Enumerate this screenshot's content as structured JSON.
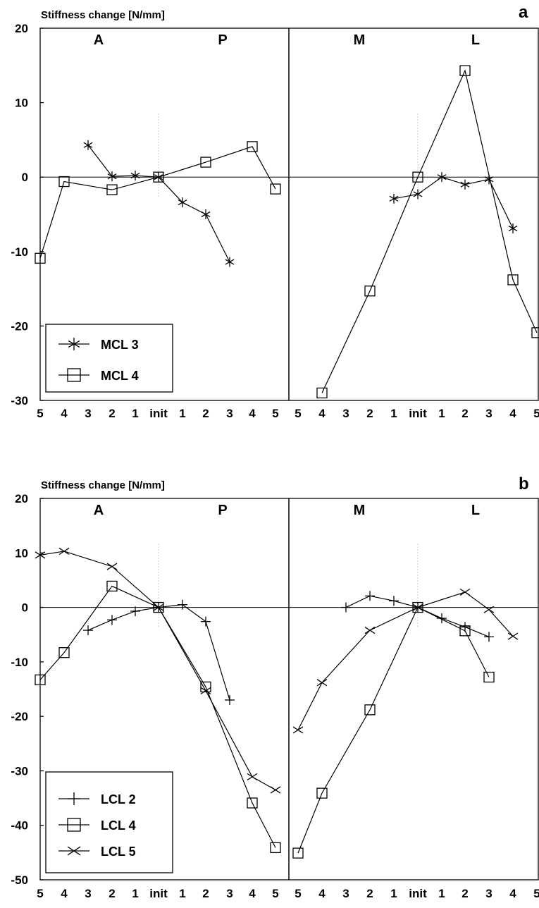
{
  "chart_data": [
    {
      "type": "line",
      "panel": "a",
      "ylabel": "Stiffness change [N/mm]",
      "ylim": [
        -30,
        20
      ],
      "yticks": [
        "20",
        "10",
        "0",
        "-10",
        "-20",
        "-30"
      ],
      "xtick_labels": [
        "5",
        "4",
        "3",
        "2",
        "1",
        "init",
        "1",
        "2",
        "3",
        "4",
        "5",
        "5",
        "4",
        "3",
        "2",
        "1",
        "init",
        "1",
        "2",
        "3",
        "4",
        "5"
      ],
      "regions": [
        "A",
        "P",
        "M",
        "L"
      ],
      "legend": [
        "MCL 3",
        "MCL 4"
      ],
      "series": [
        {
          "name": "MCL 3",
          "marker": "asterisk",
          "segments": [
            {
              "x": [
                2,
                3,
                4,
                5,
                6,
                7,
                8
              ],
              "y": [
                4.3,
                0.1,
                0.2,
                0,
                -3.4,
                -5,
                -11.4
              ]
            },
            {
              "x": [
                15,
                16,
                17,
                18,
                19,
                20
              ],
              "y": [
                -2.9,
                -2.3,
                0,
                -1,
                -0.3,
                -6.9
              ]
            }
          ]
        },
        {
          "name": "MCL 4",
          "marker": "square",
          "segments": [
            {
              "x": [
                0,
                1,
                3,
                5,
                7,
                9,
                10
              ],
              "y": [
                -10.9,
                -0.6,
                -1.7,
                0,
                2,
                4.1,
                -1.6
              ]
            },
            {
              "x": [
                12,
                14,
                16,
                18,
                20,
                21
              ],
              "y": [
                -29,
                -15.3,
                0,
                14.3,
                -13.8,
                -20.9
              ]
            }
          ]
        }
      ]
    },
    {
      "type": "line",
      "panel": "b",
      "ylabel": "Stiffness change [N/mm]",
      "ylim": [
        -50,
        20
      ],
      "yticks": [
        "20",
        "10",
        "0",
        "-10",
        "-20",
        "-30",
        "-40",
        "-50"
      ],
      "xtick_labels": [
        "5",
        "4",
        "3",
        "2",
        "1",
        "init",
        "1",
        "2",
        "3",
        "4",
        "5",
        "5",
        "4",
        "3",
        "2",
        "1",
        "init",
        "1",
        "2",
        "3",
        "4",
        "5"
      ],
      "regions": [
        "A",
        "P",
        "M",
        "L"
      ],
      "legend": [
        "LCL 2",
        "LCL 4",
        "LCL 5"
      ],
      "series": [
        {
          "name": "LCL 2",
          "marker": "plus",
          "segments": [
            {
              "x": [
                2,
                3,
                4,
                5,
                6,
                7,
                8
              ],
              "y": [
                -4.2,
                -2.3,
                -0.7,
                0,
                0.5,
                -2.6,
                -17
              ]
            },
            {
              "x": [
                13,
                14,
                15,
                16,
                17,
                18,
                19
              ],
              "y": [
                0,
                2.1,
                1.2,
                0,
                -2,
                -3.6,
                -5.4
              ]
            }
          ]
        },
        {
          "name": "LCL 4",
          "marker": "square",
          "segments": [
            {
              "x": [
                0,
                1,
                3,
                5,
                7,
                9,
                10
              ],
              "y": [
                -13.3,
                -8.3,
                3.9,
                0,
                -14.6,
                -35.9,
                -44.1
              ]
            },
            {
              "x": [
                11,
                12,
                14,
                16,
                18,
                19
              ],
              "y": [
                -45.1,
                -34.1,
                -18.8,
                0,
                -4.3,
                -12.8
              ]
            }
          ]
        },
        {
          "name": "LCL 5",
          "marker": "x",
          "segments": [
            {
              "x": [
                0,
                1,
                3,
                5,
                7,
                9,
                10
              ],
              "y": [
                9.6,
                10.3,
                7.5,
                0,
                -15.3,
                -31.1,
                -33.5
              ]
            },
            {
              "x": [
                11,
                12,
                14,
                16,
                18,
                19,
                20
              ],
              "y": [
                -22.5,
                -13.8,
                -4.2,
                0,
                2.8,
                -0.4,
                -5.3
              ]
            }
          ]
        }
      ]
    }
  ]
}
